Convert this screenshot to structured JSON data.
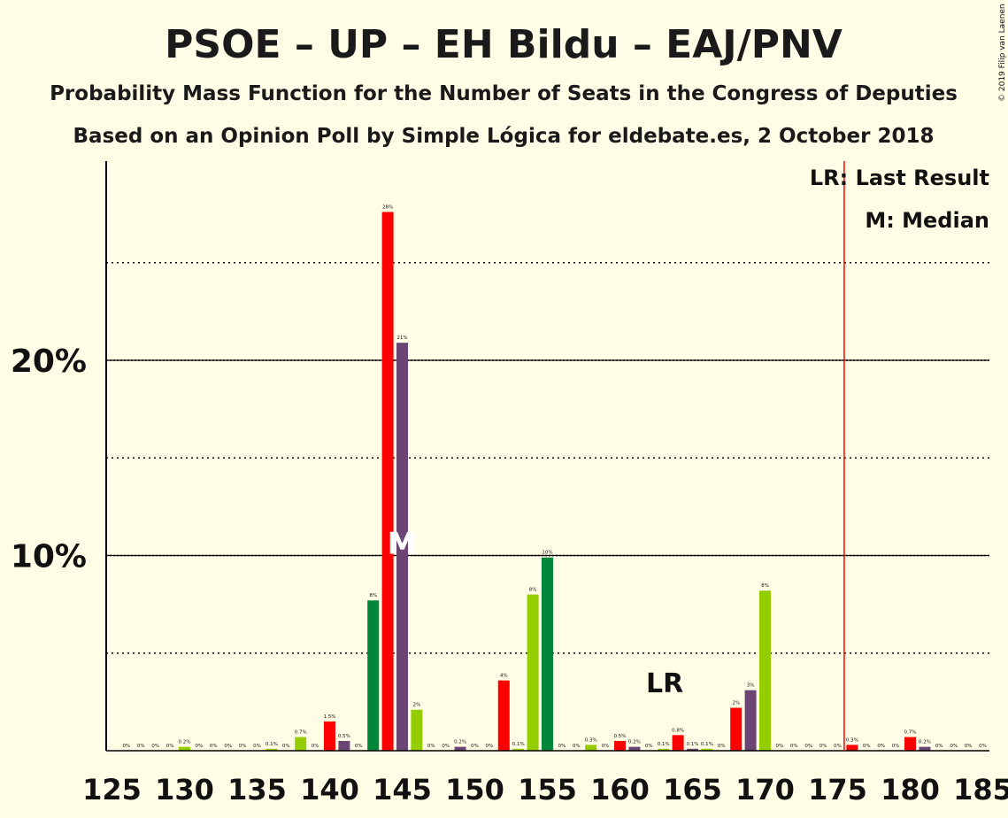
{
  "chart_data": {
    "type": "bar",
    "title": "PSOE – UP – EH Bildu – EAJ/PNV",
    "subtitle": "Probability Mass Function for the Number of Seats in the Congress of Deputies",
    "subtitle2": "Based on an Opinion Poll by Simple Lógica for eldebate.es, 2 October 2018",
    "copyright": "© 2019 Filip van Laenen",
    "legend": {
      "lr": "LR: Last Result",
      "m": "M: Median",
      "placement": "top-right"
    },
    "xlim": [
      125,
      185
    ],
    "ylim": [
      0,
      30
    ],
    "x_ticks": [
      125,
      130,
      135,
      140,
      145,
      150,
      155,
      160,
      165,
      170,
      175,
      180,
      185
    ],
    "x_tick_labels": [
      "125",
      "130",
      "135",
      "140",
      "145",
      "150",
      "155",
      "160",
      "165",
      "170",
      "175",
      "180",
      "185"
    ],
    "y_ticks": [
      10,
      20
    ],
    "y_tick_labels": [
      "10%",
      "20%"
    ],
    "y_dotted": [
      5,
      15,
      25
    ],
    "last_result": 176,
    "last_result_marker_label": "LR",
    "median": 145,
    "median_marker_label": "M",
    "colors": {
      "red": "#ff0000",
      "purple": "#6b4674",
      "lime": "#94cd00",
      "green": "#00873b",
      "lr_line": "#ff0000",
      "background": "#fffde5"
    },
    "bars": [
      {
        "x": 126,
        "v": 0,
        "l": "0%",
        "c": "lime"
      },
      {
        "x": 127,
        "v": 0,
        "l": "0%",
        "c": "lime"
      },
      {
        "x": 128,
        "v": 0,
        "l": "0%",
        "c": "lime"
      },
      {
        "x": 129,
        "v": 0,
        "l": "0%",
        "c": "lime"
      },
      {
        "x": 130,
        "v": 0.2,
        "l": "0.2%",
        "c": "lime"
      },
      {
        "x": 131,
        "v": 0,
        "l": "0%",
        "c": "lime"
      },
      {
        "x": 132,
        "v": 0,
        "l": "0%",
        "c": "lime"
      },
      {
        "x": 133,
        "v": 0,
        "l": "0%",
        "c": "lime"
      },
      {
        "x": 134,
        "v": 0,
        "l": "0%",
        "c": "lime"
      },
      {
        "x": 135,
        "v": 0,
        "l": "0%",
        "c": "lime"
      },
      {
        "x": 136,
        "v": 0.1,
        "l": "0.1%",
        "c": "lime"
      },
      {
        "x": 137,
        "v": 0,
        "l": "0%",
        "c": "lime"
      },
      {
        "x": 138,
        "v": 0.7,
        "l": "0.7%",
        "c": "lime"
      },
      {
        "x": 139,
        "v": 0,
        "l": "0%",
        "c": "lime"
      },
      {
        "x": 140,
        "v": 1.5,
        "l": "1.5%",
        "c": "red"
      },
      {
        "x": 141,
        "v": 0.5,
        "l": "0.5%",
        "c": "purple"
      },
      {
        "x": 142,
        "v": 0,
        "l": "0%",
        "c": "lime"
      },
      {
        "x": 143,
        "v": 7.7,
        "l": "8%",
        "c": "green"
      },
      {
        "x": 144,
        "v": 27.6,
        "l": "28%",
        "c": "red"
      },
      {
        "x": 145,
        "v": 20.9,
        "l": "21%",
        "c": "purple"
      },
      {
        "x": 146,
        "v": 2.1,
        "l": "2%",
        "c": "lime"
      },
      {
        "x": 147,
        "v": 0,
        "l": "0%",
        "c": "lime"
      },
      {
        "x": 148,
        "v": 0,
        "l": "0%",
        "c": "lime"
      },
      {
        "x": 149,
        "v": 0.2,
        "l": "0.2%",
        "c": "purple"
      },
      {
        "x": 150,
        "v": 0,
        "l": "0%",
        "c": "lime"
      },
      {
        "x": 151,
        "v": 0,
        "l": "0%",
        "c": "lime"
      },
      {
        "x": 152,
        "v": 3.6,
        "l": "4%",
        "c": "red"
      },
      {
        "x": 153,
        "v": 0.1,
        "l": "0.1%",
        "c": "lime"
      },
      {
        "x": 154,
        "v": 8.0,
        "l": "8%",
        "c": "lime"
      },
      {
        "x": 155,
        "v": 9.9,
        "l": "10%",
        "c": "green"
      },
      {
        "x": 156,
        "v": 0,
        "l": "0%",
        "c": "lime"
      },
      {
        "x": 157,
        "v": 0,
        "l": "0%",
        "c": "lime"
      },
      {
        "x": 158,
        "v": 0.3,
        "l": "0.3%",
        "c": "lime"
      },
      {
        "x": 159,
        "v": 0,
        "l": "0%",
        "c": "lime"
      },
      {
        "x": 160,
        "v": 0.5,
        "l": "0.5%",
        "c": "red"
      },
      {
        "x": 161,
        "v": 0.2,
        "l": "0.2%",
        "c": "purple"
      },
      {
        "x": 162,
        "v": 0,
        "l": "0%",
        "c": "lime"
      },
      {
        "x": 163,
        "v": 0.1,
        "l": "0.1%",
        "c": "lime"
      },
      {
        "x": 164,
        "v": 0.8,
        "l": "0.8%",
        "c": "red"
      },
      {
        "x": 165,
        "v": 0.1,
        "l": "0.1%",
        "c": "purple"
      },
      {
        "x": 166,
        "v": 0.1,
        "l": "0.1%",
        "c": "lime"
      },
      {
        "x": 167,
        "v": 0,
        "l": "0%",
        "c": "lime"
      },
      {
        "x": 168,
        "v": 2.2,
        "l": "2%",
        "c": "red"
      },
      {
        "x": 169,
        "v": 3.1,
        "l": "3%",
        "c": "purple"
      },
      {
        "x": 170,
        "v": 8.2,
        "l": "8%",
        "c": "lime"
      },
      {
        "x": 171,
        "v": 0,
        "l": "0%",
        "c": "lime"
      },
      {
        "x": 172,
        "v": 0,
        "l": "0%",
        "c": "lime"
      },
      {
        "x": 173,
        "v": 0,
        "l": "0%",
        "c": "lime"
      },
      {
        "x": 174,
        "v": 0,
        "l": "0%",
        "c": "lime"
      },
      {
        "x": 175,
        "v": 0,
        "l": "0%",
        "c": "lime"
      },
      {
        "x": 176,
        "v": 0.3,
        "l": "0.3%",
        "c": "red"
      },
      {
        "x": 177,
        "v": 0,
        "l": "0%",
        "c": "lime"
      },
      {
        "x": 178,
        "v": 0,
        "l": "0%",
        "c": "lime"
      },
      {
        "x": 179,
        "v": 0,
        "l": "0%",
        "c": "lime"
      },
      {
        "x": 180,
        "v": 0.7,
        "l": "0.7%",
        "c": "red"
      },
      {
        "x": 181,
        "v": 0.2,
        "l": "0.2%",
        "c": "purple"
      },
      {
        "x": 182,
        "v": 0,
        "l": "0%",
        "c": "lime"
      },
      {
        "x": 183,
        "v": 0,
        "l": "0%",
        "c": "lime"
      },
      {
        "x": 184,
        "v": 0,
        "l": "0%",
        "c": "lime"
      },
      {
        "x": 185,
        "v": 0,
        "l": "0%",
        "c": "lime"
      }
    ]
  }
}
